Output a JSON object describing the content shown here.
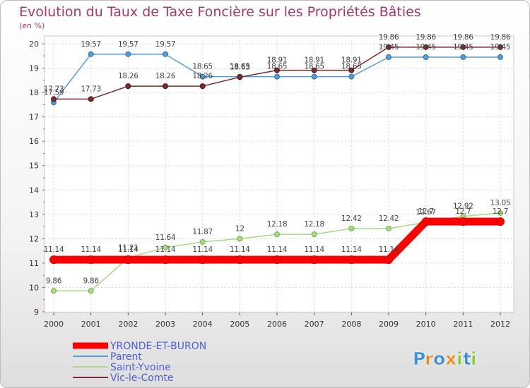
{
  "chart_data": {
    "type": "line",
    "title": "Evolution du Taux de Taxe Foncière sur les Propriétés Bâties",
    "subtitle": "(en %)",
    "xlabel": "",
    "ylabel": "",
    "ylim": [
      9,
      20
    ],
    "yticks": [
      "9",
      "10",
      "11",
      "12",
      "13",
      "14",
      "15",
      "16",
      "17",
      "18",
      "19",
      "20"
    ],
    "categories": [
      "2000",
      "2001",
      "2002",
      "2003",
      "2004",
      "2005",
      "2006",
      "2007",
      "2008",
      "2009",
      "2010",
      "2011",
      "2012"
    ],
    "grid": true,
    "series": [
      {
        "name": "YRONDE-ET-BURON",
        "color": "#ff0000",
        "values": [
          11.14,
          11.14,
          11.14,
          11.14,
          11.14,
          11.14,
          11.14,
          11.14,
          11.14,
          11.14,
          12.7,
          12.7,
          12.7
        ],
        "labels": [
          "11.14",
          "11.14",
          "11.14",
          "11.14",
          "11.14",
          "11.14",
          "11.14",
          "11.14",
          "11.14",
          "11.14",
          "12.7",
          "12.7",
          "12.7"
        ]
      },
      {
        "name": "Parent",
        "color": "#5a9bd4",
        "values": [
          17.59,
          19.57,
          19.57,
          19.57,
          18.65,
          18.65,
          18.65,
          18.65,
          18.65,
          19.45,
          19.45,
          19.45,
          19.45
        ],
        "labels": [
          "17.59",
          "19.57",
          "19.57",
          "19.57",
          "18.65",
          "18.65",
          "18.65",
          "18.65",
          "18.65",
          "19.45",
          "19.45",
          "19.45",
          "19.45"
        ]
      },
      {
        "name": "Saint-Yvoine",
        "color": "#a8d88a",
        "values": [
          9.86,
          9.86,
          11.21,
          11.64,
          11.87,
          12,
          12.18,
          12.18,
          12.42,
          12.42,
          12.67,
          12.92,
          13.05
        ],
        "labels": [
          "9.86",
          "9.86",
          "11.21",
          "11.64",
          "11.87",
          "12",
          "12.18",
          "12.18",
          "12.42",
          "12.42",
          "12.67",
          "12.92",
          "13.05"
        ]
      },
      {
        "name": "Vic-le-Comte",
        "color": "#7a2b2b",
        "values": [
          17.73,
          17.73,
          18.26,
          18.26,
          18.26,
          18.63,
          18.91,
          18.91,
          18.91,
          19.86,
          19.86,
          19.86,
          19.86
        ],
        "labels": [
          "17.73",
          "17.73",
          "18.26",
          "18.26",
          "18.26",
          "18.63",
          "18.91",
          "18.91",
          "18.91",
          "19.86",
          "19.86",
          "19.86",
          "19.86"
        ]
      }
    ],
    "legend": [
      "YRONDE-ET-BURON",
      "Parent",
      "Saint-Yvoine",
      "Vic-le-Comte"
    ]
  },
  "brand": {
    "logo_text": "Proxiti",
    "logo_letters": [
      "P",
      "r",
      "o",
      "x",
      "i",
      "t",
      "i"
    ],
    "logo_colors": [
      "#3c8fd6",
      "#f08a24",
      "#3c8fd6",
      "#f08a24",
      "#8cc63f",
      "#3c8fd6",
      "#8cc63f"
    ]
  }
}
